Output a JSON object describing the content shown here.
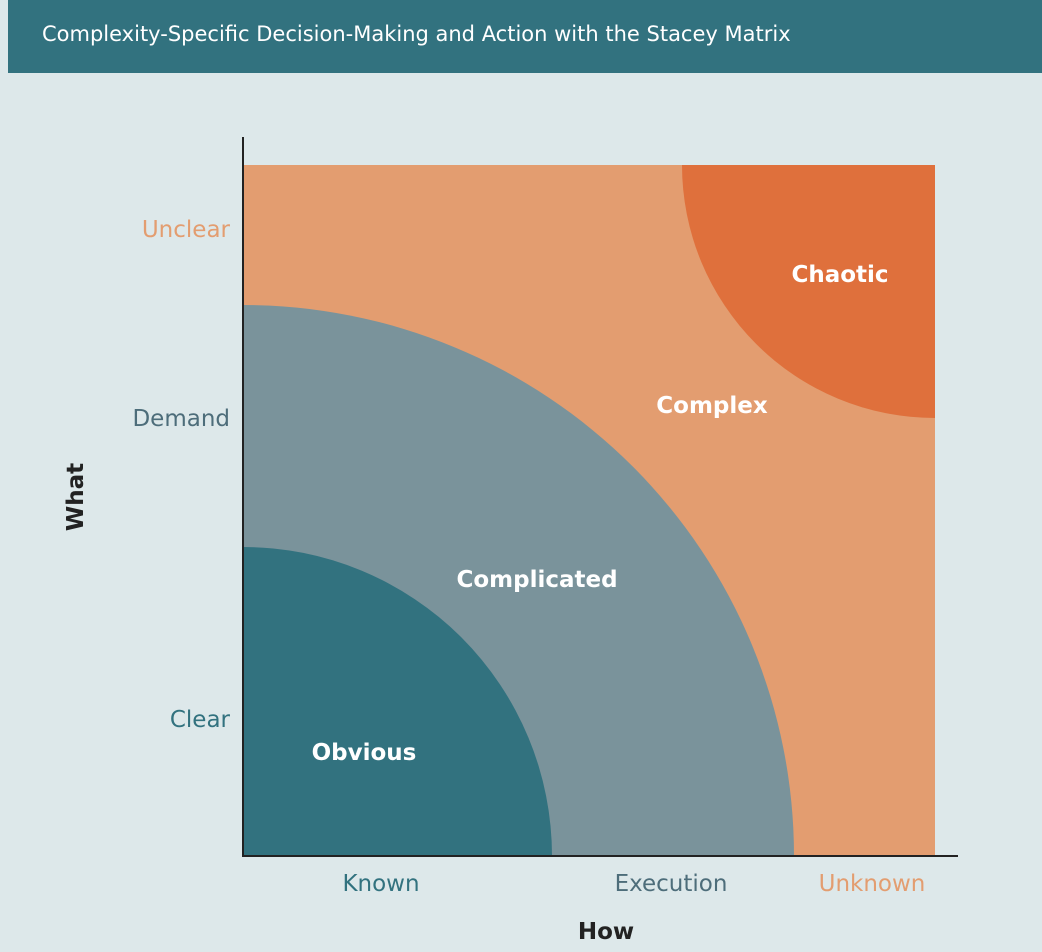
{
  "title": "Complexity-Specific Decision-Making and Action with the Stacey Matrix",
  "axes": {
    "y_title": "What",
    "x_title": "How",
    "y_ticks": [
      {
        "label": "Unclear",
        "color": "#e39d70"
      },
      {
        "label": "Demand",
        "color": "#4d6d7a"
      },
      {
        "label": "Clear",
        "color": "#32727f"
      }
    ],
    "x_ticks": [
      {
        "label": "Known",
        "color": "#32727f"
      },
      {
        "label": "Execution",
        "color": "#4d6d7a"
      },
      {
        "label": "Unknown",
        "color": "#e39d70"
      }
    ]
  },
  "zones": {
    "complex": {
      "label": "Complex",
      "color": "#e39d70"
    },
    "chaotic": {
      "label": "Chaotic",
      "color": "#df703c"
    },
    "complicated": {
      "label": "Complicated",
      "color": "#7a939b"
    },
    "obvious": {
      "label": "Obvious",
      "color": "#32727f"
    }
  },
  "colors": {
    "header": "#32727f",
    "background": "#dde8ea",
    "axis": "#222222",
    "zone_text": "#ffffff"
  }
}
